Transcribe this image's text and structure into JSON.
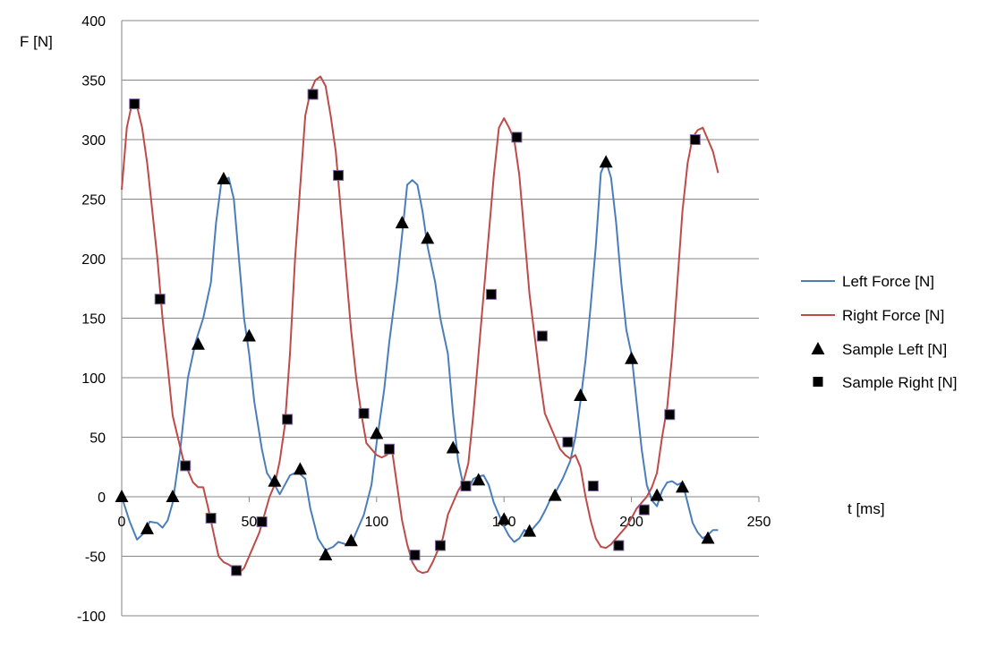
{
  "chart_data": {
    "type": "line",
    "ylabel": "F [N]",
    "xlabel": "t [ms]",
    "xlim": [
      0,
      250
    ],
    "ylim": [
      -100,
      400
    ],
    "x_ticks": [
      "0",
      "50",
      "100",
      "150",
      "200",
      "250"
    ],
    "y_ticks": [
      "-100",
      "-50",
      "0",
      "50",
      "100",
      "150",
      "200",
      "250",
      "300",
      "350",
      "400"
    ],
    "grid": "horizontal",
    "legend_position": "right",
    "series": [
      {
        "name": "Left Force [N]",
        "style": "line",
        "color": "#4a7ebb",
        "points": [
          [
            0,
            0
          ],
          [
            3,
            -20
          ],
          [
            6,
            -36
          ],
          [
            9,
            -30
          ],
          [
            11,
            -21
          ],
          [
            14,
            -22
          ],
          [
            16,
            -26
          ],
          [
            18,
            -20
          ],
          [
            20,
            -5
          ],
          [
            23,
            40
          ],
          [
            26,
            100
          ],
          [
            29,
            130
          ],
          [
            32,
            150
          ],
          [
            35,
            180
          ],
          [
            37,
            230
          ],
          [
            39,
            263
          ],
          [
            42,
            268
          ],
          [
            44,
            250
          ],
          [
            46,
            200
          ],
          [
            48,
            150
          ],
          [
            50,
            120
          ],
          [
            52,
            80
          ],
          [
            55,
            40
          ],
          [
            57,
            20
          ],
          [
            60,
            10
          ],
          [
            62,
            2
          ],
          [
            64,
            10
          ],
          [
            66,
            18
          ],
          [
            68,
            20
          ],
          [
            70,
            19
          ],
          [
            72,
            15
          ],
          [
            74,
            -10
          ],
          [
            77,
            -35
          ],
          [
            80,
            -45
          ],
          [
            83,
            -42
          ],
          [
            85,
            -38
          ],
          [
            88,
            -40
          ],
          [
            90,
            -40
          ],
          [
            92,
            -30
          ],
          [
            95,
            -15
          ],
          [
            98,
            10
          ],
          [
            100,
            45
          ],
          [
            103,
            90
          ],
          [
            105,
            130
          ],
          [
            108,
            180
          ],
          [
            110,
            220
          ],
          [
            112,
            262
          ],
          [
            114,
            266
          ],
          [
            116,
            262
          ],
          [
            118,
            240
          ],
          [
            120,
            210
          ],
          [
            123,
            180
          ],
          [
            125,
            150
          ],
          [
            128,
            120
          ],
          [
            130,
            70
          ],
          [
            132,
            30
          ],
          [
            134,
            10
          ],
          [
            136,
            6
          ],
          [
            138,
            15
          ],
          [
            140,
            17
          ],
          [
            142,
            18
          ],
          [
            144,
            10
          ],
          [
            146,
            -5
          ],
          [
            148,
            -15
          ],
          [
            150,
            -25
          ],
          [
            152,
            -33
          ],
          [
            154,
            -38
          ],
          [
            156,
            -35
          ],
          [
            158,
            -28
          ],
          [
            160,
            -30
          ],
          [
            162,
            -25
          ],
          [
            164,
            -20
          ],
          [
            166,
            -12
          ],
          [
            168,
            -3
          ],
          [
            170,
            3
          ],
          [
            173,
            15
          ],
          [
            176,
            30
          ],
          [
            178,
            50
          ],
          [
            180,
            80
          ],
          [
            182,
            115
          ],
          [
            184,
            160
          ],
          [
            186,
            210
          ],
          [
            188,
            272
          ],
          [
            190,
            282
          ],
          [
            192,
            268
          ],
          [
            194,
            230
          ],
          [
            196,
            180
          ],
          [
            198,
            140
          ],
          [
            200,
            120
          ],
          [
            202,
            80
          ],
          [
            204,
            40
          ],
          [
            206,
            10
          ],
          [
            208,
            -3
          ],
          [
            210,
            -8
          ],
          [
            212,
            5
          ],
          [
            214,
            12
          ],
          [
            216,
            13
          ],
          [
            218,
            10
          ],
          [
            220,
            12
          ],
          [
            222,
            -5
          ],
          [
            224,
            -22
          ],
          [
            226,
            -30
          ],
          [
            228,
            -35
          ],
          [
            230,
            -32
          ],
          [
            232,
            -28
          ],
          [
            234,
            -28
          ]
        ]
      },
      {
        "name": "Right Force [N]",
        "style": "line",
        "color": "#be4b48",
        "points": [
          [
            0,
            258
          ],
          [
            2,
            310
          ],
          [
            4,
            330
          ],
          [
            6,
            328
          ],
          [
            8,
            310
          ],
          [
            10,
            280
          ],
          [
            12,
            240
          ],
          [
            14,
            200
          ],
          [
            16,
            150
          ],
          [
            18,
            110
          ],
          [
            20,
            68
          ],
          [
            22,
            50
          ],
          [
            24,
            32
          ],
          [
            26,
            22
          ],
          [
            28,
            12
          ],
          [
            30,
            8
          ],
          [
            32,
            8
          ],
          [
            34,
            -10
          ],
          [
            36,
            -30
          ],
          [
            38,
            -50
          ],
          [
            40,
            -55
          ],
          [
            42,
            -57
          ],
          [
            44,
            -60
          ],
          [
            46,
            -64
          ],
          [
            48,
            -60
          ],
          [
            50,
            -50
          ],
          [
            52,
            -40
          ],
          [
            54,
            -30
          ],
          [
            56,
            -15
          ],
          [
            58,
            0
          ],
          [
            60,
            10
          ],
          [
            62,
            30
          ],
          [
            64,
            60
          ],
          [
            66,
            120
          ],
          [
            68,
            200
          ],
          [
            70,
            260
          ],
          [
            72,
            320
          ],
          [
            74,
            340
          ],
          [
            76,
            350
          ],
          [
            78,
            353
          ],
          [
            80,
            345
          ],
          [
            82,
            320
          ],
          [
            84,
            290
          ],
          [
            86,
            240
          ],
          [
            88,
            190
          ],
          [
            90,
            140
          ],
          [
            92,
            100
          ],
          [
            94,
            70
          ],
          [
            96,
            45
          ],
          [
            98,
            40
          ],
          [
            100,
            35
          ],
          [
            102,
            33
          ],
          [
            104,
            35
          ],
          [
            106,
            40
          ],
          [
            108,
            10
          ],
          [
            110,
            -20
          ],
          [
            112,
            -40
          ],
          [
            114,
            -55
          ],
          [
            116,
            -62
          ],
          [
            118,
            -64
          ],
          [
            120,
            -63
          ],
          [
            122,
            -55
          ],
          [
            124,
            -45
          ],
          [
            126,
            -35
          ],
          [
            128,
            -15
          ],
          [
            130,
            -5
          ],
          [
            132,
            5
          ],
          [
            134,
            12
          ],
          [
            136,
            28
          ],
          [
            138,
            70
          ],
          [
            140,
            120
          ],
          [
            142,
            170
          ],
          [
            144,
            220
          ],
          [
            146,
            270
          ],
          [
            148,
            310
          ],
          [
            150,
            318
          ],
          [
            152,
            310
          ],
          [
            154,
            300
          ],
          [
            156,
            270
          ],
          [
            158,
            220
          ],
          [
            160,
            170
          ],
          [
            162,
            135
          ],
          [
            164,
            100
          ],
          [
            166,
            70
          ],
          [
            168,
            60
          ],
          [
            170,
            50
          ],
          [
            172,
            40
          ],
          [
            174,
            35
          ],
          [
            176,
            32
          ],
          [
            178,
            35
          ],
          [
            180,
            25
          ],
          [
            182,
            0
          ],
          [
            184,
            -20
          ],
          [
            186,
            -35
          ],
          [
            188,
            -42
          ],
          [
            190,
            -43
          ],
          [
            192,
            -40
          ],
          [
            194,
            -35
          ],
          [
            196,
            -30
          ],
          [
            198,
            -25
          ],
          [
            200,
            -18
          ],
          [
            202,
            -10
          ],
          [
            204,
            -5
          ],
          [
            206,
            0
          ],
          [
            208,
            8
          ],
          [
            210,
            20
          ],
          [
            212,
            50
          ],
          [
            214,
            75
          ],
          [
            216,
            120
          ],
          [
            218,
            180
          ],
          [
            220,
            240
          ],
          [
            222,
            280
          ],
          [
            224,
            302
          ],
          [
            226,
            308
          ],
          [
            228,
            310
          ],
          [
            230,
            300
          ],
          [
            232,
            290
          ],
          [
            234,
            272
          ]
        ]
      },
      {
        "name": "Sample Left [N]",
        "style": "marker",
        "marker": "triangle",
        "color": "#000000",
        "points": [
          [
            0,
            0
          ],
          [
            10,
            -27
          ],
          [
            20,
            0
          ],
          [
            30,
            128
          ],
          [
            40,
            267
          ],
          [
            50,
            135
          ],
          [
            60,
            13
          ],
          [
            70,
            23
          ],
          [
            80,
            -49
          ],
          [
            90,
            -37
          ],
          [
            100,
            53
          ],
          [
            110,
            230
          ],
          [
            120,
            217
          ],
          [
            130,
            41
          ],
          [
            140,
            14
          ],
          [
            150,
            -19
          ],
          [
            160,
            -29
          ],
          [
            170,
            1
          ],
          [
            180,
            85
          ],
          [
            190,
            281
          ],
          [
            200,
            116
          ],
          [
            210,
            1
          ],
          [
            220,
            8
          ],
          [
            230,
            -35
          ]
        ]
      },
      {
        "name": "Sample Right [N]",
        "style": "marker",
        "marker": "square",
        "color": "#000000",
        "points": [
          [
            5,
            330
          ],
          [
            15,
            166
          ],
          [
            25,
            26
          ],
          [
            35,
            -18
          ],
          [
            45,
            -62
          ],
          [
            55,
            -21
          ],
          [
            65,
            65
          ],
          [
            75,
            338
          ],
          [
            85,
            270
          ],
          [
            95,
            70
          ],
          [
            105,
            40
          ],
          [
            115,
            -49
          ],
          [
            125,
            -41
          ],
          [
            135,
            9
          ],
          [
            145,
            170
          ],
          [
            155,
            302
          ],
          [
            165,
            135
          ],
          [
            175,
            46
          ],
          [
            185,
            9
          ],
          [
            195,
            -41
          ],
          [
            205,
            -11
          ],
          [
            215,
            69
          ],
          [
            225,
            300
          ]
        ]
      }
    ]
  }
}
